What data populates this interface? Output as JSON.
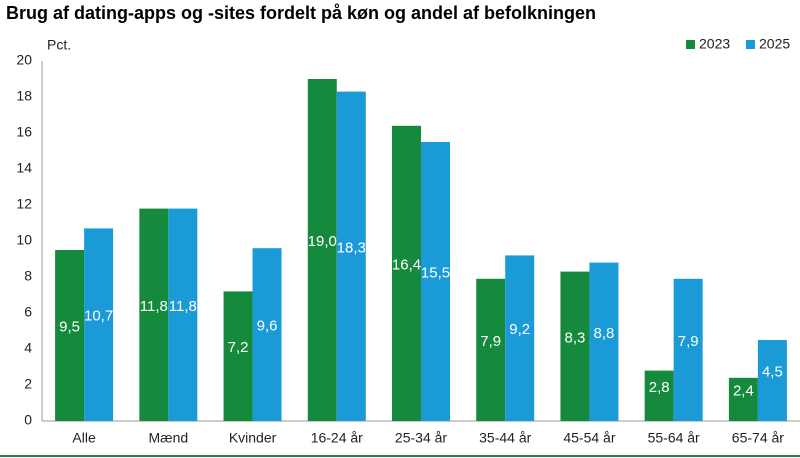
{
  "chart_data": {
    "type": "bar",
    "title": "Brug af dating-apps og -sites fordelt på køn og andel af befolkningen",
    "y_label": "Pct.",
    "categories": [
      "Alle",
      "Mænd",
      "Kvinder",
      "16-24 år",
      "25-34 år",
      "35-44 år",
      "45-54 år",
      "55-64 år",
      "65-74 år"
    ],
    "series": [
      {
        "name": "2023",
        "color": "#168a3c",
        "values": [
          9.5,
          11.8,
          7.2,
          19.0,
          16.4,
          7.9,
          8.3,
          2.8,
          2.4
        ],
        "value_labels": [
          "9,5",
          "11,8",
          "7,2",
          "19,0",
          "16,4",
          "7,9",
          "8,3",
          "2,8",
          "2,4"
        ]
      },
      {
        "name": "2025",
        "color": "#1b9ad8",
        "values": [
          10.7,
          11.8,
          9.6,
          18.3,
          15.5,
          9.2,
          8.8,
          7.9,
          4.5
        ],
        "value_labels": [
          "10,7",
          "11,8",
          "9,6",
          "18,3",
          "15,5",
          "9,2",
          "8,8",
          "7,9",
          "4,5"
        ]
      }
    ],
    "ylim": [
      0,
      20
    ],
    "yticks": [
      0,
      2,
      4,
      6,
      8,
      10,
      12,
      14,
      16,
      18,
      20
    ],
    "grid": false,
    "legend": "top-right"
  }
}
